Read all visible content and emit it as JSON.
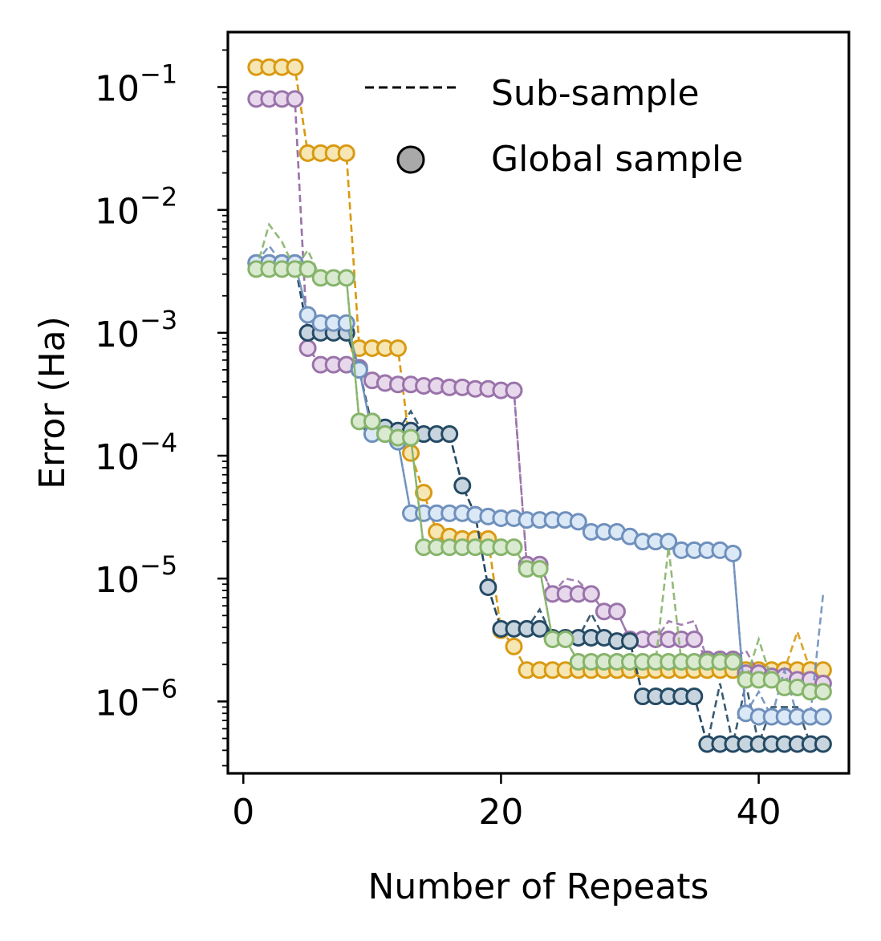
{
  "chart_data": {
    "type": "line",
    "title": "",
    "xlabel": "Number of Repeats",
    "ylabel": "Error (Ha)",
    "xlim": [
      -1.2,
      47.0
    ],
    "ylim": [
      2.6e-07,
      0.28
    ],
    "yscale": "log",
    "xticks": [
      0,
      20,
      40
    ],
    "xtick_labels": [
      "0",
      "20",
      "40"
    ],
    "ytick_exponents": [
      -1,
      -2,
      -3,
      -4,
      -5,
      -6
    ],
    "legend": {
      "position": "upper-right",
      "sub_sample_label": "Sub-sample",
      "global_sample_label": "Global sample",
      "marker_color": "#a9a9a9"
    },
    "series": [
      {
        "name": "orange",
        "edge_color": "#d99a12",
        "fill_color": "#f6e6b3",
        "global": [
          0.145,
          0.145,
          0.145,
          0.145,
          0.029,
          0.029,
          0.029,
          0.029,
          0.00075,
          0.00075,
          0.00075,
          0.00075,
          0.000105,
          5e-05,
          2.4e-05,
          2.2e-05,
          2.1e-05,
          2.1e-05,
          2.1e-05,
          3.8e-06,
          2.8e-06,
          1.8e-06,
          1.8e-06,
          1.8e-06,
          1.8e-06,
          1.8e-06,
          1.8e-06,
          1.8e-06,
          1.8e-06,
          1.8e-06,
          1.8e-06,
          1.8e-06,
          1.8e-06,
          1.8e-06,
          1.8e-06,
          1.8e-06,
          1.8e-06,
          1.8e-06,
          1.8e-06,
          1.8e-06,
          1.8e-06,
          1.8e-06,
          1.8e-06,
          1.8e-06,
          1.8e-06
        ],
        "sub": [
          0.145,
          0.145,
          0.145,
          0.145,
          0.029,
          0.029,
          0.029,
          0.029,
          0.00075,
          0.00075,
          0.00075,
          0.00075,
          0.000105,
          5e-05,
          2.4e-05,
          2.2e-05,
          2.1e-05,
          2.1e-05,
          2.1e-05,
          3.8e-06,
          2.8e-06,
          1.8e-06,
          1.8e-06,
          1.8e-06,
          1.8e-06,
          1.8e-06,
          1.8e-06,
          1.8e-06,
          1.8e-06,
          1.8e-06,
          1.8e-06,
          1.8e-06,
          1.8e-06,
          1.8e-06,
          1.8e-06,
          1.8e-06,
          1.8e-06,
          1.8e-06,
          1.8e-06,
          1.8e-06,
          1.8e-06,
          1.8e-06,
          3.7e-06,
          1.8e-06,
          1.8e-06
        ]
      },
      {
        "name": "purple",
        "edge_color": "#9a73aa",
        "fill_color": "#e7d8ec",
        "global": [
          0.08,
          0.08,
          0.08,
          0.08,
          0.00075,
          0.00055,
          0.00055,
          0.00055,
          0.00052,
          0.00041,
          0.00039,
          0.00038,
          0.00038,
          0.00037,
          0.00037,
          0.00036,
          0.00036,
          0.00035,
          0.00035,
          0.00034,
          0.00034,
          1.3e-05,
          1.3e-05,
          7.5e-06,
          7.5e-06,
          7.5e-06,
          7.5e-06,
          5.4e-06,
          5.4e-06,
          3.2e-06,
          3.2e-06,
          3.2e-06,
          3.2e-06,
          3.2e-06,
          3.2e-06,
          2.2e-06,
          2.2e-06,
          2.2e-06,
          1.7e-06,
          1.7e-06,
          1.6e-06,
          1.6e-06,
          1.5e-06,
          1.5e-06,
          1.4e-06
        ],
        "sub": [
          0.08,
          0.08,
          0.08,
          0.08,
          0.00075,
          0.00055,
          0.00062,
          0.00055,
          0.00052,
          0.00041,
          0.00039,
          0.00038,
          0.00038,
          0.00037,
          0.00037,
          0.00036,
          0.00036,
          0.00035,
          0.00035,
          0.00034,
          0.00034,
          1.3e-05,
          1.3e-05,
          7.5e-06,
          1e-05,
          9.5e-06,
          7.5e-06,
          5.4e-06,
          5.4e-06,
          3.2e-06,
          3.8e-06,
          3.2e-06,
          4.5e-06,
          4.2e-06,
          4.5e-06,
          2.2e-06,
          2.2e-06,
          2.2e-06,
          2.6e-06,
          1.7e-06,
          1.6e-06,
          1.6e-06,
          1.5e-06,
          1.5e-06,
          1.4e-06
        ]
      },
      {
        "name": "navy",
        "edge_color": "#244a64",
        "fill_color": "#c8d4de",
        "global": [
          0.0037,
          0.0037,
          0.0037,
          0.0037,
          0.001,
          0.001,
          0.001,
          0.001,
          0.0005,
          0.00017,
          0.00017,
          0.00016,
          0.00016,
          0.00015,
          0.00015,
          0.00015,
          5.7e-05,
          3.3e-05,
          8.5e-06,
          3.9e-06,
          3.9e-06,
          3.9e-06,
          3.9e-06,
          3.3e-06,
          3.3e-06,
          3.3e-06,
          3.3e-06,
          3.3e-06,
          3.1e-06,
          3.1e-06,
          1.1e-06,
          1.1e-06,
          1.1e-06,
          1.1e-06,
          1.1e-06,
          4.5e-07,
          4.5e-07,
          4.5e-07,
          4.5e-07,
          4.5e-07,
          4.5e-07,
          4.5e-07,
          4.5e-07,
          4.5e-07,
          4.5e-07
        ],
        "sub": [
          0.0037,
          0.0037,
          0.0037,
          0.0037,
          0.001,
          0.001,
          0.001,
          0.001,
          0.0005,
          0.00017,
          0.00017,
          0.00016,
          0.00023,
          0.00015,
          0.00015,
          0.00015,
          5.7e-05,
          3.3e-05,
          8.5e-06,
          3.9e-06,
          3.9e-06,
          3.9e-06,
          5.6e-06,
          3.3e-06,
          3.3e-06,
          3.3e-06,
          5.2e-06,
          3.3e-06,
          3.1e-06,
          3.1e-06,
          1.1e-06,
          1.1e-06,
          1.1e-06,
          1.1e-06,
          1.1e-06,
          4.5e-07,
          1.4e-06,
          4.5e-07,
          1.4e-06,
          4.5e-07,
          9e-07,
          9e-07,
          9e-07,
          4.5e-07,
          4.5e-07
        ]
      },
      {
        "name": "blue",
        "edge_color": "#6f90bd",
        "fill_color": "#dbe8f6",
        "global": [
          0.0037,
          0.0037,
          0.0037,
          0.0037,
          0.0014,
          0.0012,
          0.0012,
          0.0012,
          0.0005,
          0.00015,
          0.00015,
          0.00013,
          3.4e-05,
          3.4e-05,
          3.4e-05,
          3.4e-05,
          3.4e-05,
          3.3e-05,
          3.2e-05,
          3.1e-05,
          3.1e-05,
          3e-05,
          3e-05,
          3e-05,
          3e-05,
          2.9e-05,
          2.4e-05,
          2.4e-05,
          2.4e-05,
          2.2e-05,
          2e-05,
          2e-05,
          2e-05,
          1.7e-05,
          1.7e-05,
          1.7e-05,
          1.7e-05,
          1.6e-05,
          8e-07,
          7.5e-07,
          7.5e-07,
          7.5e-07,
          7.5e-07,
          7.5e-07,
          7.5e-07
        ],
        "sub": [
          0.0037,
          0.0051,
          0.0037,
          0.0037,
          0.0014,
          0.0012,
          0.0012,
          0.0012,
          0.0005,
          0.00015,
          0.00015,
          0.00013,
          3.4e-05,
          3.4e-05,
          3.4e-05,
          3.4e-05,
          3.4e-05,
          3.3e-05,
          3.2e-05,
          3.1e-05,
          3.1e-05,
          3e-05,
          3e-05,
          3e-05,
          3e-05,
          2.9e-05,
          2.4e-05,
          2.4e-05,
          2.4e-05,
          2.2e-05,
          2e-05,
          2e-05,
          2e-05,
          1.7e-05,
          1.7e-05,
          1.7e-05,
          1.7e-05,
          1.6e-05,
          8e-07,
          1.2e-06,
          7.5e-07,
          1.8e-06,
          7.5e-07,
          7.5e-07,
          7.5e-06
        ]
      },
      {
        "name": "green",
        "edge_color": "#86b46b",
        "fill_color": "#d9ead0",
        "global": [
          0.0033,
          0.0033,
          0.0033,
          0.0033,
          0.0033,
          0.0028,
          0.0028,
          0.0028,
          0.00019,
          0.00019,
          0.00015,
          0.00014,
          0.00014,
          1.8e-05,
          1.8e-05,
          1.8e-05,
          1.8e-05,
          1.8e-05,
          1.8e-05,
          1.8e-05,
          1.8e-05,
          1.2e-05,
          1.2e-05,
          3.2e-06,
          3.2e-06,
          2.1e-06,
          2.1e-06,
          2.1e-06,
          2.1e-06,
          2.1e-06,
          2.1e-06,
          2.1e-06,
          2.1e-06,
          2.1e-06,
          2.1e-06,
          2.1e-06,
          2.1e-06,
          2.1e-06,
          1.5e-06,
          1.5e-06,
          1.5e-06,
          1.3e-06,
          1.3e-06,
          1.2e-06,
          1.2e-06
        ],
        "sub": [
          0.0033,
          0.0076,
          0.0055,
          0.0033,
          0.0047,
          0.0028,
          0.0028,
          0.0028,
          0.00019,
          0.00019,
          0.00015,
          0.00014,
          0.00014,
          1.8e-05,
          1.8e-05,
          1.8e-05,
          1.8e-05,
          1.8e-05,
          1.8e-05,
          1.8e-05,
          1.8e-05,
          1.2e-05,
          1.2e-05,
          3.2e-06,
          3.2e-06,
          2.1e-06,
          2.1e-06,
          2.1e-06,
          2.1e-06,
          2.1e-06,
          2.1e-06,
          2.1e-06,
          1.8e-05,
          2.1e-06,
          2.1e-06,
          2.1e-06,
          2.1e-06,
          2.1e-06,
          1.5e-06,
          3.2e-06,
          1.5e-06,
          1.3e-06,
          1.3e-06,
          1.2e-06,
          1.2e-06
        ]
      }
    ]
  }
}
